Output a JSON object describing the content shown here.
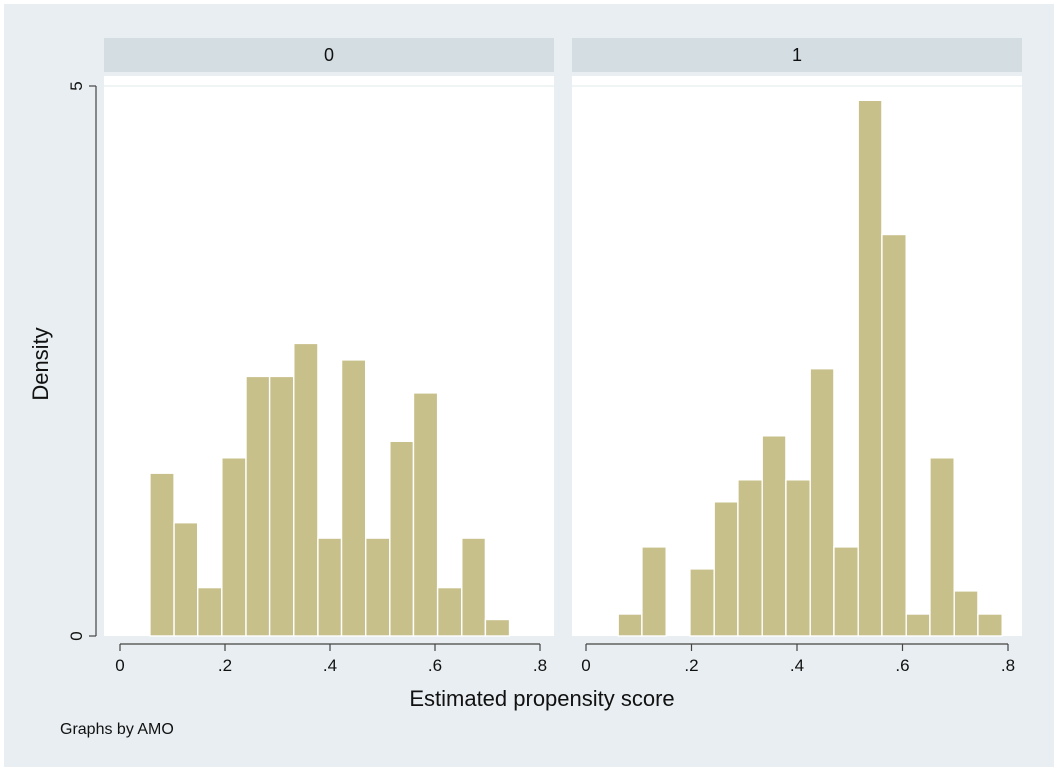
{
  "chart_data": {
    "type": "bar",
    "subtype": "histogram-by-group",
    "xlabel": "Estimated propensity score",
    "ylabel": "Density",
    "note": "Graphs by AMO",
    "bar_color": "#c8c08a",
    "x_ticks": [
      {
        "v": 0,
        "label": "0"
      },
      {
        "v": 0.2,
        "label": ".2"
      },
      {
        "v": 0.4,
        "label": ".4"
      },
      {
        "v": 0.6,
        "label": ".6"
      },
      {
        "v": 0.8,
        "label": ".8"
      }
    ],
    "y_ticks": [
      {
        "v": 0,
        "label": "0"
      },
      {
        "v": 5,
        "label": "5"
      }
    ],
    "xlim": [
      0,
      0.8
    ],
    "ylim": [
      0,
      5
    ],
    "panels": [
      {
        "title": "0",
        "bins": [
          {
            "x0": 0.057,
            "x1": 0.103,
            "density": 1.48
          },
          {
            "x0": 0.103,
            "x1": 0.148,
            "density": 1.03
          },
          {
            "x0": 0.148,
            "x1": 0.194,
            "density": 0.44
          },
          {
            "x0": 0.194,
            "x1": 0.24,
            "density": 1.62
          },
          {
            "x0": 0.24,
            "x1": 0.285,
            "density": 2.36
          },
          {
            "x0": 0.285,
            "x1": 0.331,
            "density": 2.36
          },
          {
            "x0": 0.331,
            "x1": 0.377,
            "density": 2.66
          },
          {
            "x0": 0.377,
            "x1": 0.422,
            "density": 0.89
          },
          {
            "x0": 0.422,
            "x1": 0.468,
            "density": 2.51
          },
          {
            "x0": 0.468,
            "x1": 0.514,
            "density": 0.89
          },
          {
            "x0": 0.514,
            "x1": 0.559,
            "density": 1.77
          },
          {
            "x0": 0.559,
            "x1": 0.605,
            "density": 2.21
          },
          {
            "x0": 0.605,
            "x1": 0.651,
            "density": 0.44
          },
          {
            "x0": 0.651,
            "x1": 0.696,
            "density": 0.89
          },
          {
            "x0": 0.696,
            "x1": 0.742,
            "density": 0.15
          }
        ]
      },
      {
        "title": "1",
        "bins": [
          {
            "x0": 0.061,
            "x1": 0.106,
            "density": 0.2
          },
          {
            "x0": 0.106,
            "x1": 0.152,
            "density": 0.81
          },
          {
            "x0": 0.152,
            "x1": 0.197,
            "density": 0.0
          },
          {
            "x0": 0.197,
            "x1": 0.243,
            "density": 0.61
          },
          {
            "x0": 0.243,
            "x1": 0.288,
            "density": 1.22
          },
          {
            "x0": 0.288,
            "x1": 0.334,
            "density": 1.42
          },
          {
            "x0": 0.334,
            "x1": 0.379,
            "density": 1.82
          },
          {
            "x0": 0.379,
            "x1": 0.425,
            "density": 1.42
          },
          {
            "x0": 0.425,
            "x1": 0.47,
            "density": 2.43
          },
          {
            "x0": 0.47,
            "x1": 0.516,
            "density": 0.81
          },
          {
            "x0": 0.516,
            "x1": 0.561,
            "density": 4.87
          },
          {
            "x0": 0.561,
            "x1": 0.607,
            "density": 3.65
          },
          {
            "x0": 0.607,
            "x1": 0.652,
            "density": 0.2
          },
          {
            "x0": 0.652,
            "x1": 0.698,
            "density": 1.62
          },
          {
            "x0": 0.698,
            "x1": 0.743,
            "density": 0.41
          },
          {
            "x0": 0.743,
            "x1": 0.789,
            "density": 0.2
          }
        ]
      }
    ]
  }
}
